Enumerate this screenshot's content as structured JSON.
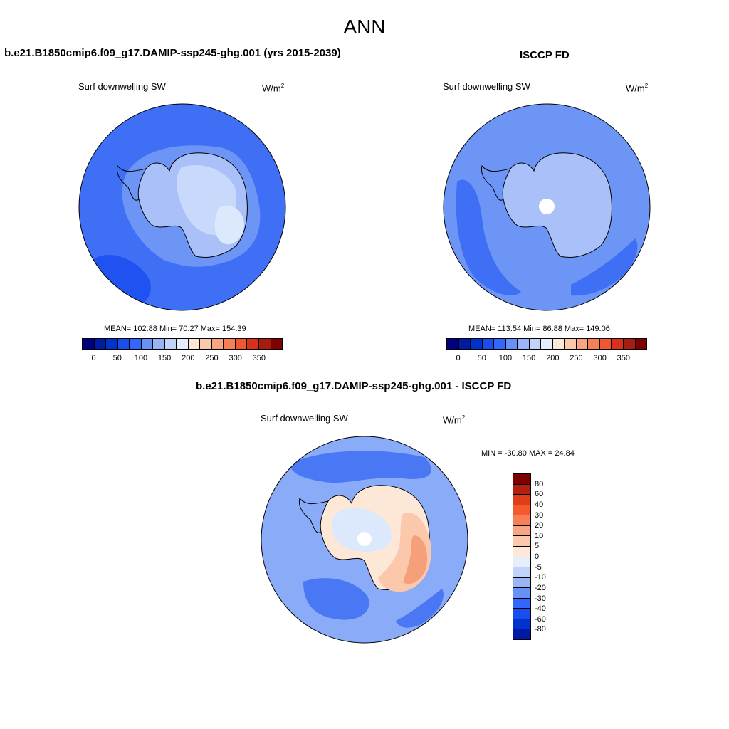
{
  "figure": {
    "title": "ANN"
  },
  "panels": [
    {
      "id": "model",
      "title": "b.e21.B1850cmip6.f09_g17.DAMIP-ssp245-ghg.001 (yrs 2015-2039)",
      "variable": "Surf downwelling SW",
      "units": "W/m",
      "units_exp": "2",
      "stats": {
        "mean_label": "MEAN=",
        "mean": "102.88",
        "min_label": "Min=",
        "min": "70.27",
        "max_label": "Max=",
        "max": "154.39"
      },
      "stats_text": "MEAN= 102.88  Min=  70.27  Max= 154.39"
    },
    {
      "id": "obs",
      "title": "ISCCP FD",
      "variable": "Surf downwelling SW",
      "units": "W/m",
      "units_exp": "2",
      "stats_text": "MEAN= 113.54  Min=  86.88  Max= 149.06"
    },
    {
      "id": "diff",
      "title": "b.e21.B1850cmip6.f09_g17.DAMIP-ssp245-ghg.001 - ISCCP FD",
      "variable": "Surf downwelling SW",
      "units": "W/m",
      "units_exp": "2",
      "stats_text": "MIN = -30.80 MAX =  24.84"
    }
  ],
  "colorbar_abs": {
    "ticks": [
      "0",
      "50",
      "100",
      "150",
      "200",
      "250",
      "300",
      "350"
    ],
    "colors": [
      "#00007f",
      "#001aa6",
      "#0033cc",
      "#1a4dee",
      "#3366ff",
      "#6691f5",
      "#9ab4f7",
      "#c2d3fa",
      "#e4eefc",
      "#fde8d8",
      "#fbc8ab",
      "#f9a582",
      "#f77f57",
      "#f0572f",
      "#d9301b",
      "#a61c10",
      "#7f0000"
    ]
  },
  "colorbar_diff": {
    "ticks": [
      "80",
      "60",
      "40",
      "30",
      "20",
      "10",
      "5",
      "0",
      "-5",
      "-10",
      "-20",
      "-30",
      "-40",
      "-60",
      "-80"
    ],
    "colors": [
      "#7f0000",
      "#b3200f",
      "#e03d1a",
      "#f55a2e",
      "#f77f57",
      "#f9a582",
      "#fbc8ab",
      "#fde8d8",
      "#e4eefc",
      "#c2d3fa",
      "#9ab4f7",
      "#6691f5",
      "#3366ff",
      "#1a4dee",
      "#0033cc",
      "#001aa6"
    ]
  },
  "map_colors": {
    "ocean_dark": "#1f52f0",
    "ocean_mid": "#3f6ff5",
    "ocean_light": "#6d95f6",
    "ice_light": "#a9c1f8",
    "ice_lighter": "#c9d9fb",
    "ice_lightest": "#dce8fc",
    "diff_ocean": "#8aabf7",
    "diff_ocean_dark": "#4a78f5",
    "diff_warm1": "#fde8d8",
    "diff_warm2": "#fbc8ab",
    "diff_warm3": "#f5a07a"
  }
}
